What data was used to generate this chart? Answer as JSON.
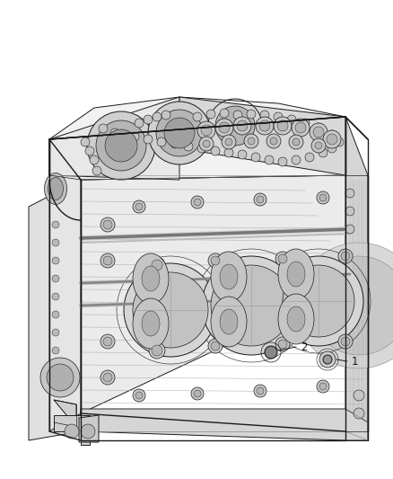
{
  "background_color": "#ffffff",
  "fig_width": 4.38,
  "fig_height": 5.33,
  "dpi": 100,
  "line_color": "#1a1a1a",
  "label_fontsize": 8.5,
  "callout1_text": "1",
  "callout2_text": "2",
  "engine_color_top": "#f0f0f0",
  "engine_color_front": "#e8e8e8",
  "engine_color_right": "#d8d8d8",
  "engine_color_inner": "#c8c8c8"
}
